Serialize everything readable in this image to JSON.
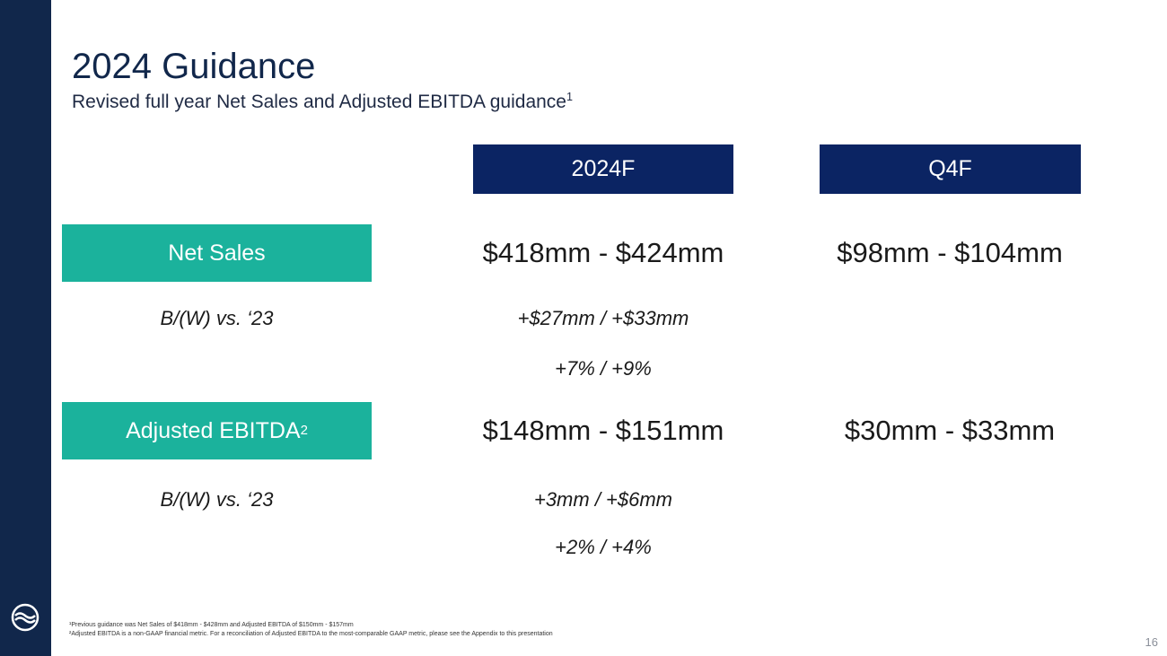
{
  "slide": {
    "title": "2024 Guidance",
    "subtitle": "Revised full year Net Sales and Adjusted EBITDA guidance",
    "subtitle_sup": "1",
    "page_number": "16"
  },
  "columns": {
    "full_year": "2024F",
    "q4": "Q4F"
  },
  "net_sales": {
    "label": "Net Sales",
    "full_year": "$418mm - $424mm",
    "q4": "$98mm - $104mm",
    "bw_label": "B/(W) vs.  ‘23",
    "bw_amount": "+$27mm / +$33mm",
    "bw_percent": "+7% / +9%"
  },
  "adjusted_ebitda": {
    "label": "Adjusted EBITDA",
    "label_sup": "2",
    "full_year": "$148mm - $151mm",
    "q4": "$30mm - $33mm",
    "bw_label": "B/(W) vs.  ‘23",
    "bw_amount": "+3mm / +$6mm",
    "bw_percent": "+2% / +4%"
  },
  "footnotes": [
    "¹Previous guidance was Net Sales of $418mm - $428mm and Adjusted EBITDA of $150mm - $157mm",
    "²Adjusted EBITDA is a non-GAAP financial metric. For a reconciliation of Adjusted EBITDA to the most-comparable GAAP metric, please see the Appendix to this presentation"
  ],
  "colors": {
    "sidebar": "#11274b",
    "header_navy": "#0b2463",
    "metric_teal": "#1bb29c"
  },
  "icons": {
    "logo": "wave-logo-icon"
  }
}
